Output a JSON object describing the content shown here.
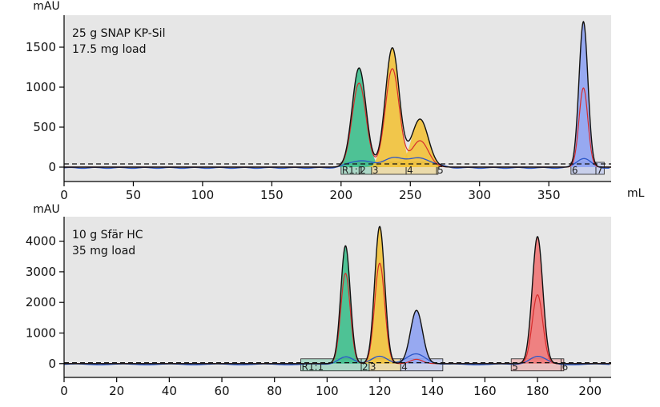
{
  "chart_data": [
    {
      "type": "line",
      "annotations": [
        "25 g SNAP KP-Sil",
        "17.5 mg load"
      ],
      "ylabel": "mAU",
      "xlabel": "mL",
      "xlim": [
        0,
        395
      ],
      "ylim": [
        -180,
        1900
      ],
      "xticks": [
        0,
        50,
        100,
        150,
        200,
        250,
        300,
        350
      ],
      "yticks": [
        0,
        500,
        1000,
        1500
      ],
      "grid": false,
      "background": "#e6e6e6",
      "baseline_threshold": 40,
      "peaks": [
        {
          "center": 213,
          "height": 1240,
          "sigma": 5.0,
          "color": "#3dbe8c",
          "secondary_height": 1050,
          "uv_height": 90
        },
        {
          "center": 237,
          "height": 1490,
          "sigma": 5.0,
          "color": "#f2c23a",
          "secondary_height": 1230,
          "uv_height": 110
        },
        {
          "center": 257,
          "height": 600,
          "sigma": 6.0,
          "color": "#f2c23a",
          "secondary_height": 330,
          "uv_height": 115
        },
        {
          "center": 375,
          "height": 1820,
          "sigma": 3.2,
          "color": "#8ea2f2",
          "secondary_height": 990,
          "uv_height": 120
        }
      ],
      "fractions": [
        {
          "label": "R1:1",
          "start": 200,
          "end": 213,
          "color": "#3dbe8c"
        },
        {
          "label": "2",
          "start": 213,
          "end": 222,
          "color": "#3dbe8c"
        },
        {
          "label": "3",
          "start": 222,
          "end": 247,
          "color": "#f2c23a"
        },
        {
          "label": "4",
          "start": 247,
          "end": 269,
          "color": "#f2c23a"
        },
        {
          "label": "5",
          "start": 269,
          "end": 270,
          "color": "#f2c23a"
        },
        {
          "label": "6",
          "start": 366,
          "end": 384,
          "color": "#8ea2f2"
        },
        {
          "label": "7",
          "start": 384,
          "end": 390,
          "color": "#8ea2f2"
        }
      ],
      "colors": {
        "main_trace": "#111111",
        "secondary_trace": "#d62c2c",
        "uv_trace": "#2b56c8",
        "threshold": "#111111"
      }
    },
    {
      "type": "line",
      "annotations": [
        "10 g Sfär HC",
        "35 mg load"
      ],
      "ylabel": "mAU",
      "xlabel": "",
      "xlim": [
        0,
        208
      ],
      "ylim": [
        -450,
        4800
      ],
      "xticks": [
        0,
        20,
        40,
        60,
        80,
        100,
        120,
        140,
        160,
        180,
        200
      ],
      "yticks": [
        0,
        1000,
        2000,
        3000,
        4000
      ],
      "grid": false,
      "background": "#e6e6e6",
      "baseline_threshold": 30,
      "peaks": [
        {
          "center": 107,
          "height": 3850,
          "sigma": 1.8,
          "color": "#3dbe8c",
          "secondary_height": 2950,
          "uv_height": 250
        },
        {
          "center": 120,
          "height": 4480,
          "sigma": 1.9,
          "color": "#f2c23a",
          "secondary_height": 3280,
          "uv_height": 280
        },
        {
          "center": 134,
          "height": 1740,
          "sigma": 2.3,
          "color": "#8ea2f2",
          "secondary_height": 140,
          "uv_height": 340
        },
        {
          "center": 180,
          "height": 4150,
          "sigma": 2.0,
          "color": "#f07575",
          "secondary_height": 2250,
          "uv_height": 260
        }
      ],
      "fractions": [
        {
          "label": "R1:1",
          "start": 90,
          "end": 113,
          "color": "#3dbe8c"
        },
        {
          "label": "2",
          "start": 113,
          "end": 116,
          "color": "#3dbe8c"
        },
        {
          "label": "3",
          "start": 116,
          "end": 128,
          "color": "#f2c23a"
        },
        {
          "label": "4",
          "start": 128,
          "end": 144,
          "color": "#8ea2f2"
        },
        {
          "label": "5",
          "start": 170,
          "end": 189,
          "color": "#f07575"
        },
        {
          "label": "6",
          "start": 189,
          "end": 190,
          "color": "#f07575"
        }
      ],
      "colors": {
        "main_trace": "#111111",
        "secondary_trace": "#d62c2c",
        "uv_trace": "#2b56c8",
        "threshold": "#111111"
      }
    }
  ]
}
